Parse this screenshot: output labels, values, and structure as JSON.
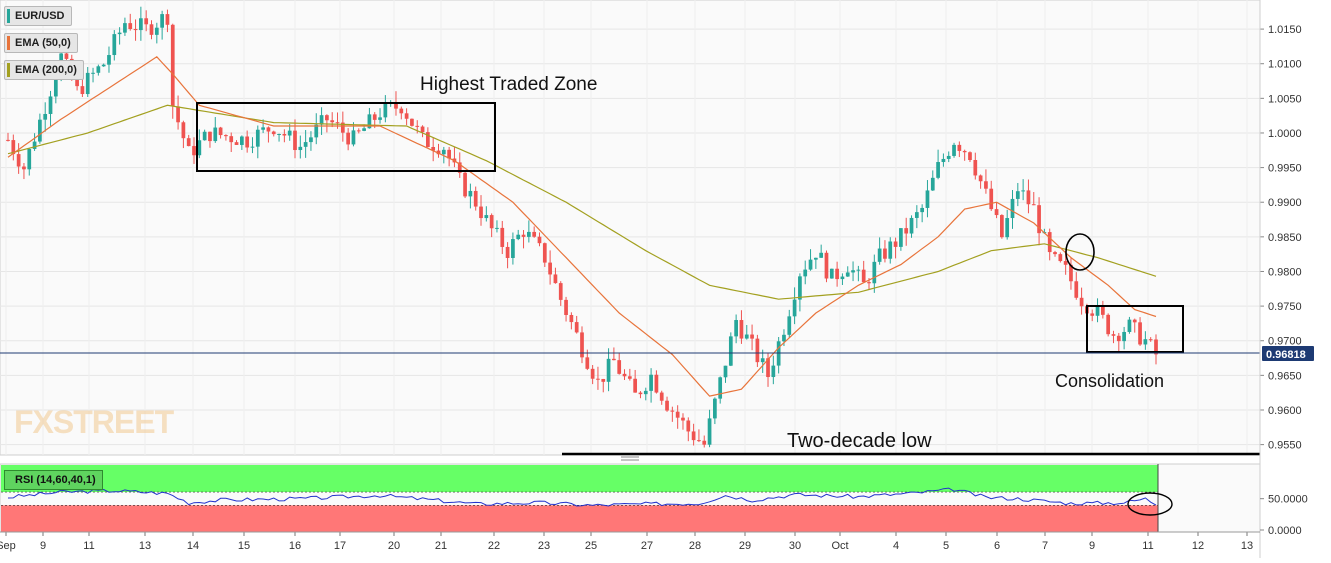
{
  "legend": {
    "symbol": "EUR/USD",
    "ema50": "EMA (50,0)",
    "ema200": "EMA (200,0)",
    "rsi": "RSI (14,60,40,1)",
    "ema50_color": "#e8743b",
    "ema200_color": "#a3a020"
  },
  "watermark": "FXSTREET",
  "annotations": {
    "zone": "Highest Traded Zone",
    "low": "Two-decade low",
    "consolidation": "Consolidation"
  },
  "colors": {
    "up_candle": "#26a69a",
    "down_candle": "#ef5350",
    "current_price_line": "#1d3a73",
    "rsi_line": "#2233cc",
    "rsi_overbought_fill": "#66ff66",
    "rsi_oversold_fill": "#ff7777"
  },
  "chart_data": [
    {
      "type": "line",
      "subtype": "candlestick",
      "symbol": "EUR/USD",
      "current_price": 0.96818,
      "current_price_label": "0.96818",
      "y_ticks": [
        "1.0150",
        "1.0100",
        "1.0050",
        "1.0000",
        "0.9950",
        "0.9900",
        "0.9850",
        "0.9800",
        "0.9750",
        "0.9700",
        "0.9650",
        "0.9600",
        "0.9550"
      ],
      "ylim": [
        0.9535,
        1.0192
      ],
      "x_ticks": [
        "Sep",
        "9",
        "11",
        "13",
        "14",
        "15",
        "16",
        "17",
        "20",
        "21",
        "22",
        "23",
        "25",
        "27",
        "28",
        "29",
        "30",
        "Oct",
        "4",
        "5",
        "6",
        "7",
        "9",
        "11",
        "12",
        "13"
      ],
      "grid": true,
      "price_anchors": [
        [
          0,
          0.999
        ],
        [
          3,
          0.995
        ],
        [
          7,
          1.004
        ],
        [
          10,
          1.011
        ],
        [
          13,
          1.006
        ],
        [
          18,
          1.01
        ],
        [
          22,
          1.016
        ],
        [
          26,
          1.015
        ],
        [
          30,
          1.017
        ],
        [
          31,
          1.004
        ],
        [
          34,
          0.997
        ],
        [
          38,
          1.0
        ],
        [
          45,
          0.999
        ],
        [
          50,
          1.001
        ],
        [
          55,
          0.998
        ],
        [
          60,
          1.002
        ],
        [
          65,
          0.999
        ],
        [
          70,
          1.003
        ],
        [
          74,
          1.004
        ],
        [
          78,
          0.999
        ],
        [
          82,
          0.998
        ],
        [
          85,
          0.993
        ],
        [
          88,
          0.99
        ],
        [
          91,
          0.986
        ],
        [
          94,
          0.983
        ],
        [
          97,
          0.986
        ],
        [
          101,
          0.982
        ],
        [
          104,
          0.976
        ],
        [
          108,
          0.969
        ],
        [
          111,
          0.964
        ],
        [
          114,
          0.967
        ],
        [
          118,
          0.962
        ],
        [
          121,
          0.965
        ],
        [
          124,
          0.961
        ],
        [
          128,
          0.957
        ],
        [
          131,
          0.955
        ],
        [
          134,
          0.964
        ],
        [
          137,
          0.973
        ],
        [
          140,
          0.969
        ],
        [
          143,
          0.965
        ],
        [
          146,
          0.972
        ],
        [
          149,
          0.98
        ],
        [
          152,
          0.983
        ],
        [
          155,
          0.979
        ],
        [
          158,
          0.981
        ],
        [
          161,
          0.978
        ],
        [
          164,
          0.982
        ],
        [
          168,
          0.985
        ],
        [
          172,
          0.989
        ],
        [
          175,
          0.995
        ],
        [
          178,
          0.999
        ],
        [
          181,
          0.997
        ],
        [
          184,
          0.991
        ],
        [
          187,
          0.985
        ],
        [
          190,
          0.992
        ],
        [
          193,
          0.989
        ],
        [
          196,
          0.982
        ],
        [
          199,
          0.98
        ],
        [
          202,
          0.976
        ],
        [
          205,
          0.974
        ],
        [
          208,
          0.971
        ],
        [
          211,
          0.972
        ],
        [
          214,
          0.97
        ],
        [
          216,
          0.968
        ]
      ],
      "ema50_anchors": [
        [
          0,
          0.9965
        ],
        [
          10,
          1.002
        ],
        [
          22,
          1.008
        ],
        [
          28,
          1.011
        ],
        [
          31,
          1.0085
        ],
        [
          36,
          1.004
        ],
        [
          50,
          1.001
        ],
        [
          70,
          1.001
        ],
        [
          84,
          0.996
        ],
        [
          95,
          0.99
        ],
        [
          105,
          0.982
        ],
        [
          115,
          0.974
        ],
        [
          125,
          0.968
        ],
        [
          132,
          0.962
        ],
        [
          138,
          0.963
        ],
        [
          145,
          0.969
        ],
        [
          152,
          0.974
        ],
        [
          160,
          0.978
        ],
        [
          168,
          0.981
        ],
        [
          175,
          0.985
        ],
        [
          180,
          0.989
        ],
        [
          186,
          0.99
        ],
        [
          193,
          0.987
        ],
        [
          200,
          0.982
        ],
        [
          207,
          0.978
        ],
        [
          212,
          0.9745
        ],
        [
          216,
          0.9735
        ]
      ],
      "ema200_anchors": [
        [
          0,
          0.997
        ],
        [
          15,
          1.0
        ],
        [
          30,
          1.004
        ],
        [
          50,
          1.0015
        ],
        [
          75,
          1.001
        ],
        [
          90,
          0.996
        ],
        [
          105,
          0.99
        ],
        [
          120,
          0.983
        ],
        [
          132,
          0.978
        ],
        [
          145,
          0.976
        ],
        [
          160,
          0.977
        ],
        [
          175,
          0.98
        ],
        [
          185,
          0.983
        ],
        [
          195,
          0.984
        ],
        [
          205,
          0.982
        ],
        [
          216,
          0.9793
        ]
      ]
    },
    {
      "type": "line",
      "name": "RSI (14,60,40,1)",
      "overbought": 60,
      "oversold": 40,
      "y_ticks": [
        "50.0000",
        "0.0000"
      ],
      "ylim": [
        0,
        100
      ],
      "rsi_anchors": [
        [
          0,
          52
        ],
        [
          10,
          60
        ],
        [
          20,
          62
        ],
        [
          30,
          58
        ],
        [
          34,
          44
        ],
        [
          40,
          48
        ],
        [
          55,
          50
        ],
        [
          70,
          55
        ],
        [
          80,
          48
        ],
        [
          88,
          42
        ],
        [
          100,
          44
        ],
        [
          110,
          40
        ],
        [
          120,
          42
        ],
        [
          130,
          43
        ],
        [
          135,
          55
        ],
        [
          140,
          48
        ],
        [
          148,
          56
        ],
        [
          160,
          53
        ],
        [
          170,
          58
        ],
        [
          178,
          64
        ],
        [
          184,
          52
        ],
        [
          190,
          50
        ],
        [
          200,
          43
        ],
        [
          210,
          44
        ],
        [
          214,
          50
        ],
        [
          216,
          42
        ]
      ]
    }
  ]
}
